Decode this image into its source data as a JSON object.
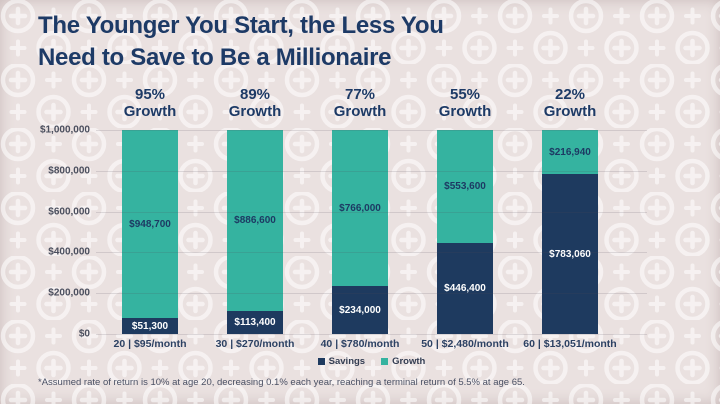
{
  "title": {
    "line1": "The Younger You Start, the Less You",
    "line2": "Need to Save to Be a Millionaire"
  },
  "footnote": "*Assumed rate of return is 10% at age 20, decreasing 0.1% each year, reaching a terminal return of 5.5% at age 65.",
  "colors": {
    "savings": "#1e3a5f",
    "growth": "#35b3a0",
    "background": "#eae1e0",
    "title_text": "#1d3a66"
  },
  "legend": [
    {
      "label": "Savings",
      "color": "#1e3a5f"
    },
    {
      "label": "Growth",
      "color": "#35b3a0"
    }
  ],
  "chart_data": {
    "type": "bar",
    "stacked": true,
    "title": "The Younger You Start, the Less You Need to Save to Be a Millionaire",
    "xlabel": "",
    "ylabel": "",
    "ylim": [
      0,
      1000000
    ],
    "grid": true,
    "legend_position": "bottom",
    "y_ticks": [
      {
        "label": "$1,000,000",
        "value": 1000000
      },
      {
        "label": "$800,000",
        "value": 800000
      },
      {
        "label": "$600,000",
        "value": 600000
      },
      {
        "label": "$400,000",
        "value": 400000
      },
      {
        "label": "$200,000",
        "value": 200000
      },
      {
        "label": "$0",
        "value": 0
      }
    ],
    "categories": [
      "20 | $95/month",
      "30 | $270/month",
      "40 | $780/month",
      "50 | $2,480/month",
      "60 | $13,051/month"
    ],
    "series": [
      {
        "name": "Savings",
        "values": [
          51300,
          113400,
          234000,
          446400,
          783060
        ]
      },
      {
        "name": "Growth",
        "values": [
          948700,
          886600,
          766000,
          553600,
          216940
        ]
      }
    ],
    "bars": [
      {
        "age_label": "20 | $95/month",
        "growth_pct": "95%",
        "header_word": "Growth",
        "savings": 51300,
        "growth": 948700,
        "savings_label": "$51,300",
        "growth_label": "$948,700"
      },
      {
        "age_label": "30 | $270/month",
        "growth_pct": "89%",
        "header_word": "Growth",
        "savings": 113400,
        "growth": 886600,
        "savings_label": "$113,400",
        "growth_label": "$886,600"
      },
      {
        "age_label": "40 | $780/month",
        "growth_pct": "77%",
        "header_word": "Growth",
        "savings": 234000,
        "growth": 766000,
        "savings_label": "$234,000",
        "growth_label": "$766,000"
      },
      {
        "age_label": "50 | $2,480/month",
        "growth_pct": "55%",
        "header_word": "Growth",
        "savings": 446400,
        "growth": 553600,
        "savings_label": "$446,400",
        "growth_label": "$553,600"
      },
      {
        "age_label": "60 | $13,051/month",
        "growth_pct": "22%",
        "header_word": "Growth",
        "savings": 783060,
        "growth": 216940,
        "savings_label": "$783,060",
        "growth_label": "$216,940"
      }
    ]
  }
}
